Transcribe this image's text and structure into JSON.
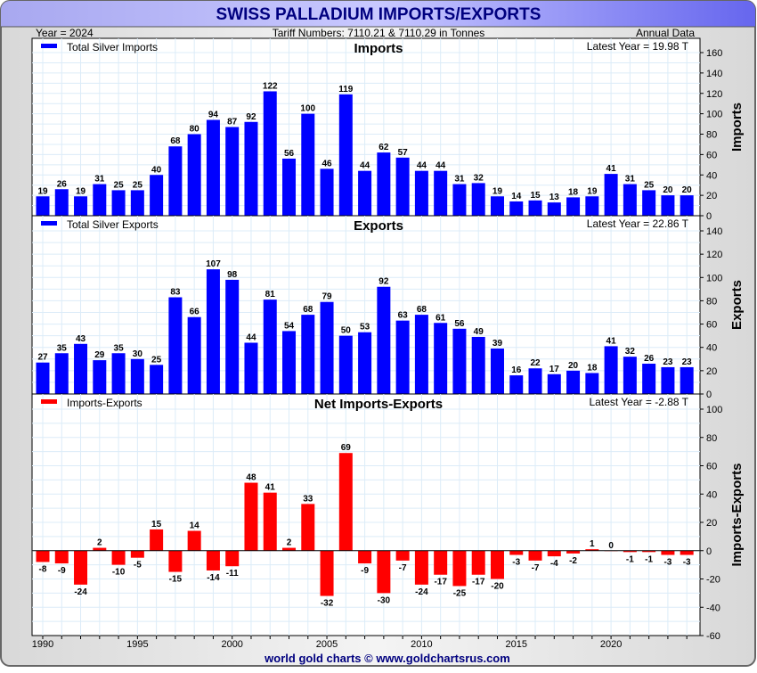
{
  "header": {
    "title": "SWISS PALLADIUM IMPORTS/EXPORTS",
    "year": "Year = 2024",
    "tariff": "Tariff Numbers: 7110.21 & 7110.29 in Tonnes",
    "period": "Annual Data"
  },
  "footer": "world gold charts © www.goldchartsrus.com",
  "colors": {
    "imports": "#0000ff",
    "exports": "#0000ff",
    "net": "#ff0000",
    "title": "#00007f"
  },
  "chart_data": [
    {
      "type": "bar",
      "title": "Imports",
      "legend": "Total Silver Imports",
      "latest": "Latest Year = 19.98 T",
      "ylabel": "Imports",
      "ylim": [
        0,
        160
      ],
      "yticks": [
        0,
        20,
        40,
        60,
        80,
        100,
        120,
        140,
        160
      ],
      "x": [
        1990,
        1991,
        1992,
        1993,
        1994,
        1995,
        1996,
        1997,
        1998,
        1999,
        2000,
        2001,
        2002,
        2003,
        2004,
        2005,
        2006,
        2007,
        2008,
        2009,
        2010,
        2011,
        2012,
        2013,
        2014,
        2015,
        2016,
        2017,
        2018,
        2019,
        2020,
        2021,
        2022,
        2023,
        2024
      ],
      "values": [
        19,
        26,
        19,
        31,
        25,
        25,
        40,
        68,
        80,
        94,
        87,
        92,
        122,
        56,
        100,
        46,
        119,
        44,
        62,
        57,
        44,
        44,
        31,
        32,
        19,
        14,
        15,
        13,
        18,
        19,
        41,
        31,
        25,
        20,
        20
      ]
    },
    {
      "type": "bar",
      "title": "Exports",
      "legend": "Total Silver Exports",
      "latest": "Latest Year = 22.86 T",
      "ylabel": "Exports",
      "ylim": [
        0,
        140
      ],
      "yticks": [
        0,
        20,
        40,
        60,
        80,
        100,
        120,
        140
      ],
      "x": [
        1990,
        1991,
        1992,
        1993,
        1994,
        1995,
        1996,
        1997,
        1998,
        1999,
        2000,
        2001,
        2002,
        2003,
        2004,
        2005,
        2006,
        2007,
        2008,
        2009,
        2010,
        2011,
        2012,
        2013,
        2014,
        2015,
        2016,
        2017,
        2018,
        2019,
        2020,
        2021,
        2022,
        2023,
        2024
      ],
      "values": [
        27,
        35,
        43,
        29,
        35,
        30,
        25,
        83,
        66,
        107,
        98,
        44,
        81,
        54,
        68,
        79,
        50,
        53,
        92,
        63,
        68,
        61,
        56,
        49,
        39,
        16,
        22,
        17,
        20,
        18,
        41,
        32,
        26,
        23,
        23
      ]
    },
    {
      "type": "bar",
      "title": "Net Imports-Exports",
      "legend": "Imports-Exports",
      "latest": "Latest Year = -2.88 T",
      "ylabel": "Imports-Exports",
      "ylim": [
        -60,
        100
      ],
      "yticks": [
        -60,
        -40,
        -20,
        0,
        20,
        40,
        60,
        80,
        100
      ],
      "x": [
        1990,
        1991,
        1992,
        1993,
        1994,
        1995,
        1996,
        1997,
        1998,
        1999,
        2000,
        2001,
        2002,
        2003,
        2004,
        2005,
        2006,
        2007,
        2008,
        2009,
        2010,
        2011,
        2012,
        2013,
        2014,
        2015,
        2016,
        2017,
        2018,
        2019,
        2020,
        2021,
        2022,
        2023,
        2024
      ],
      "values": [
        -8,
        -9,
        -24,
        2,
        -10,
        -5,
        15,
        -15,
        14,
        -14,
        -11,
        48,
        41,
        2,
        33,
        -32,
        69,
        -9,
        -30,
        -7,
        -24,
        -17,
        -25,
        -17,
        -20,
        -3,
        -7,
        -4,
        -2,
        1,
        0,
        -1,
        -1,
        -3,
        -3
      ]
    }
  ],
  "xaxis": {
    "ticks": [
      "1990",
      "1995",
      "2000",
      "2005",
      "2010",
      "2015",
      "2020"
    ]
  }
}
